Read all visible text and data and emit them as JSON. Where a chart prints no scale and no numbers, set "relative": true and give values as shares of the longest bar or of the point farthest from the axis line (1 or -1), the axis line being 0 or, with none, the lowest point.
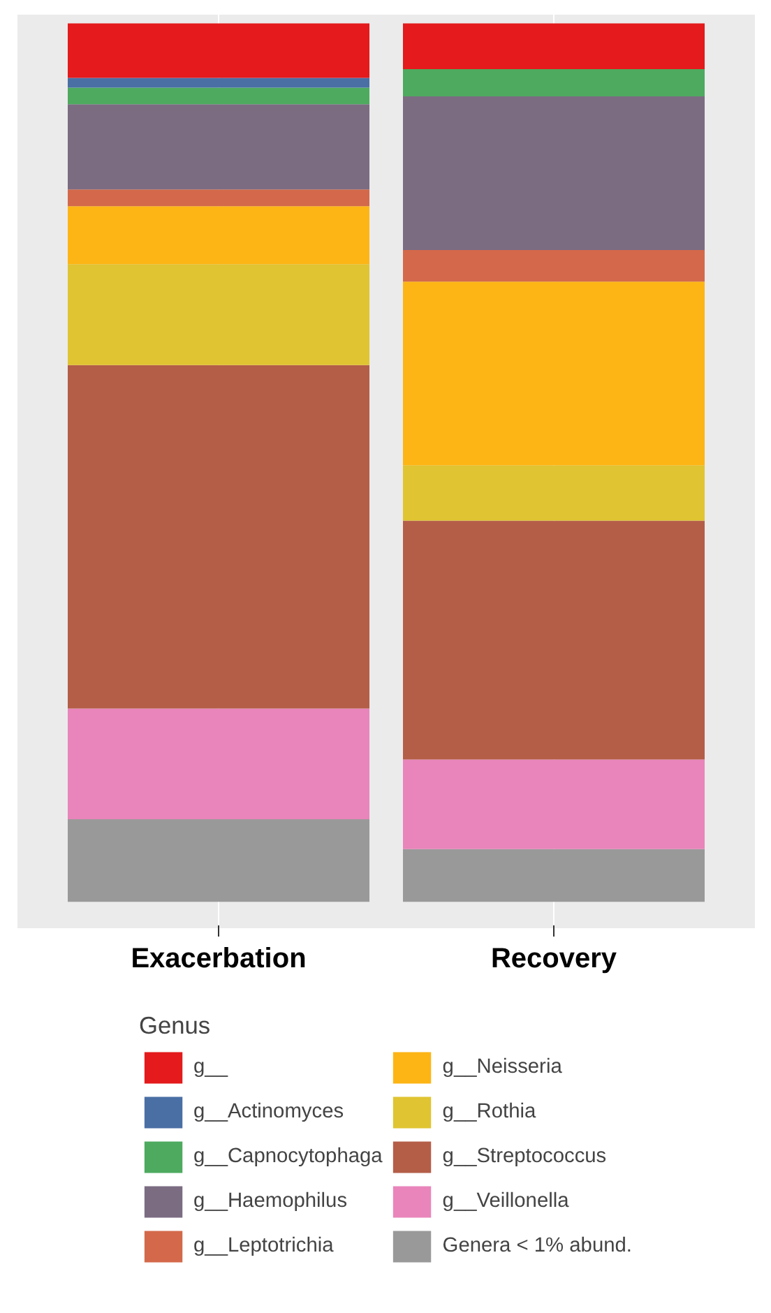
{
  "chart_data": {
    "type": "bar",
    "stacked": true,
    "relative": true,
    "legend_title": "Genus",
    "legend": "bottom",
    "grid": "x",
    "tick_labels": "x",
    "categories": [
      "Exacerbation",
      "Recovery"
    ],
    "series": [
      {
        "name": "Genera < 1% abund.",
        "color": "#999999",
        "values": [
          0.094,
          0.06
        ]
      },
      {
        "name": "g__Veillonella",
        "color": "#e985bb",
        "values": [
          0.126,
          0.102
        ]
      },
      {
        "name": "g__Streptococcus",
        "color": "#b45e48",
        "values": [
          0.391,
          0.272
        ]
      },
      {
        "name": "g__Rothia",
        "color": "#e0c431",
        "values": [
          0.115,
          0.063
        ]
      },
      {
        "name": "g__Neisseria",
        "color": "#fdb515",
        "values": [
          0.066,
          0.209
        ]
      },
      {
        "name": "g__Leptotrichia",
        "color": "#d3694a",
        "values": [
          0.019,
          0.036
        ]
      },
      {
        "name": "g__Haemophilus",
        "color": "#7b6c82",
        "values": [
          0.097,
          0.175
        ]
      },
      {
        "name": "g__Capnocytophaga",
        "color": "#4daa5f",
        "values": [
          0.019,
          0.031
        ]
      },
      {
        "name": "g__Actinomyces",
        "color": "#4a6fa5",
        "values": [
          0.011,
          0.0
        ]
      },
      {
        "name": "g__",
        "color": "#e41a1c",
        "values": [
          0.062,
          0.052
        ]
      }
    ]
  }
}
